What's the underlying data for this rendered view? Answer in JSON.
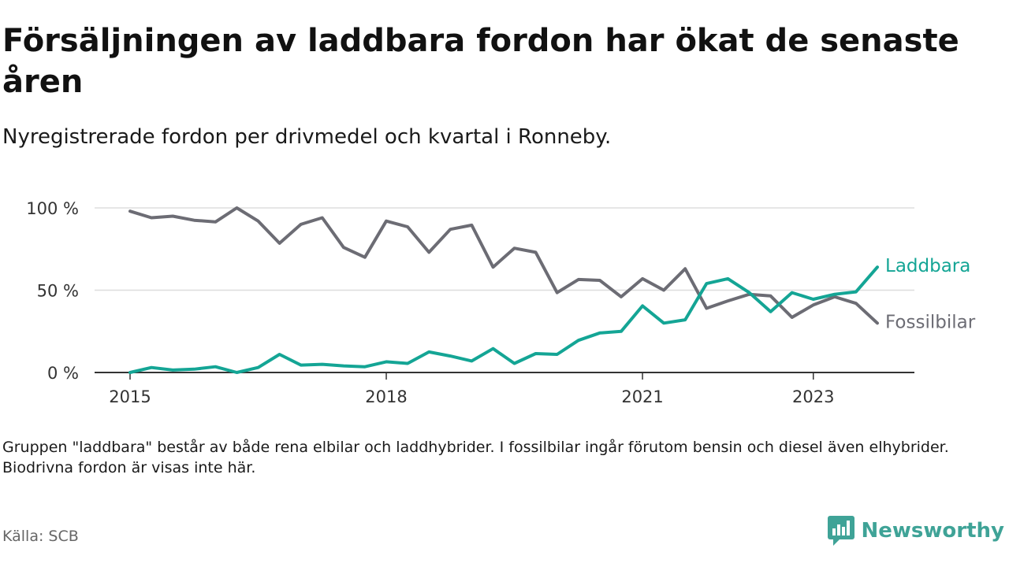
{
  "header": {
    "title": "Försäljningen av laddbara fordon har ökat de senaste åren",
    "subtitle": "Nyregistrerade fordon per drivmedel och kvartal i Ronneby."
  },
  "footer": {
    "note": "Gruppen \"laddbara\" består av både rena elbilar och laddhybrider. I fossilbilar ingår förutom bensin och diesel även elhybrider. Biodrivna fordon är visas inte här.",
    "source": "Källa: SCB",
    "brand": "Newsworthy"
  },
  "colors": {
    "laddbara": "#14a595",
    "fossilbilar": "#6c6c74",
    "grid": "#dddddd",
    "axis": "#333333",
    "brand": "#3fa397"
  },
  "chart_data": {
    "type": "line",
    "title": "Försäljningen av laddbara fordon har ökat de senaste åren",
    "xlabel": "",
    "ylabel": "",
    "x_start": 2015,
    "x_step": 0.25,
    "xlim": [
      2015,
      2023.75
    ],
    "ylim": [
      0,
      100
    ],
    "y_ticks": [
      0,
      50,
      100
    ],
    "y_tick_labels": [
      "0 %",
      "50 %",
      "100 %"
    ],
    "x_ticks": [
      2015,
      2018,
      2021,
      2023
    ],
    "x_tick_labels": [
      "2015",
      "2018",
      "2021",
      "2023"
    ],
    "grid": true,
    "series": [
      {
        "name": "Fossilbilar",
        "color": "#6c6c74",
        "values": [
          98,
          94,
          95,
          92.5,
          91.5,
          100,
          92,
          78.5,
          90,
          94,
          76,
          70,
          92,
          88.5,
          73,
          87,
          89.5,
          64,
          75.5,
          73,
          48.5,
          56.5,
          56,
          46,
          57,
          50,
          63,
          39,
          43.5,
          47.5,
          46.5,
          33.5,
          41,
          46,
          42,
          30
        ]
      },
      {
        "name": "Laddbara",
        "color": "#14a595",
        "values": [
          0,
          3,
          1.5,
          2,
          3.5,
          0,
          3,
          11,
          4.5,
          5,
          4,
          3.5,
          6.5,
          5.5,
          12.5,
          10,
          7,
          14.5,
          5.5,
          11.5,
          11,
          19.5,
          24,
          25,
          40.5,
          30,
          32,
          54,
          57,
          48.5,
          37,
          48.5,
          44.5,
          47.5,
          49,
          64
        ]
      }
    ]
  }
}
